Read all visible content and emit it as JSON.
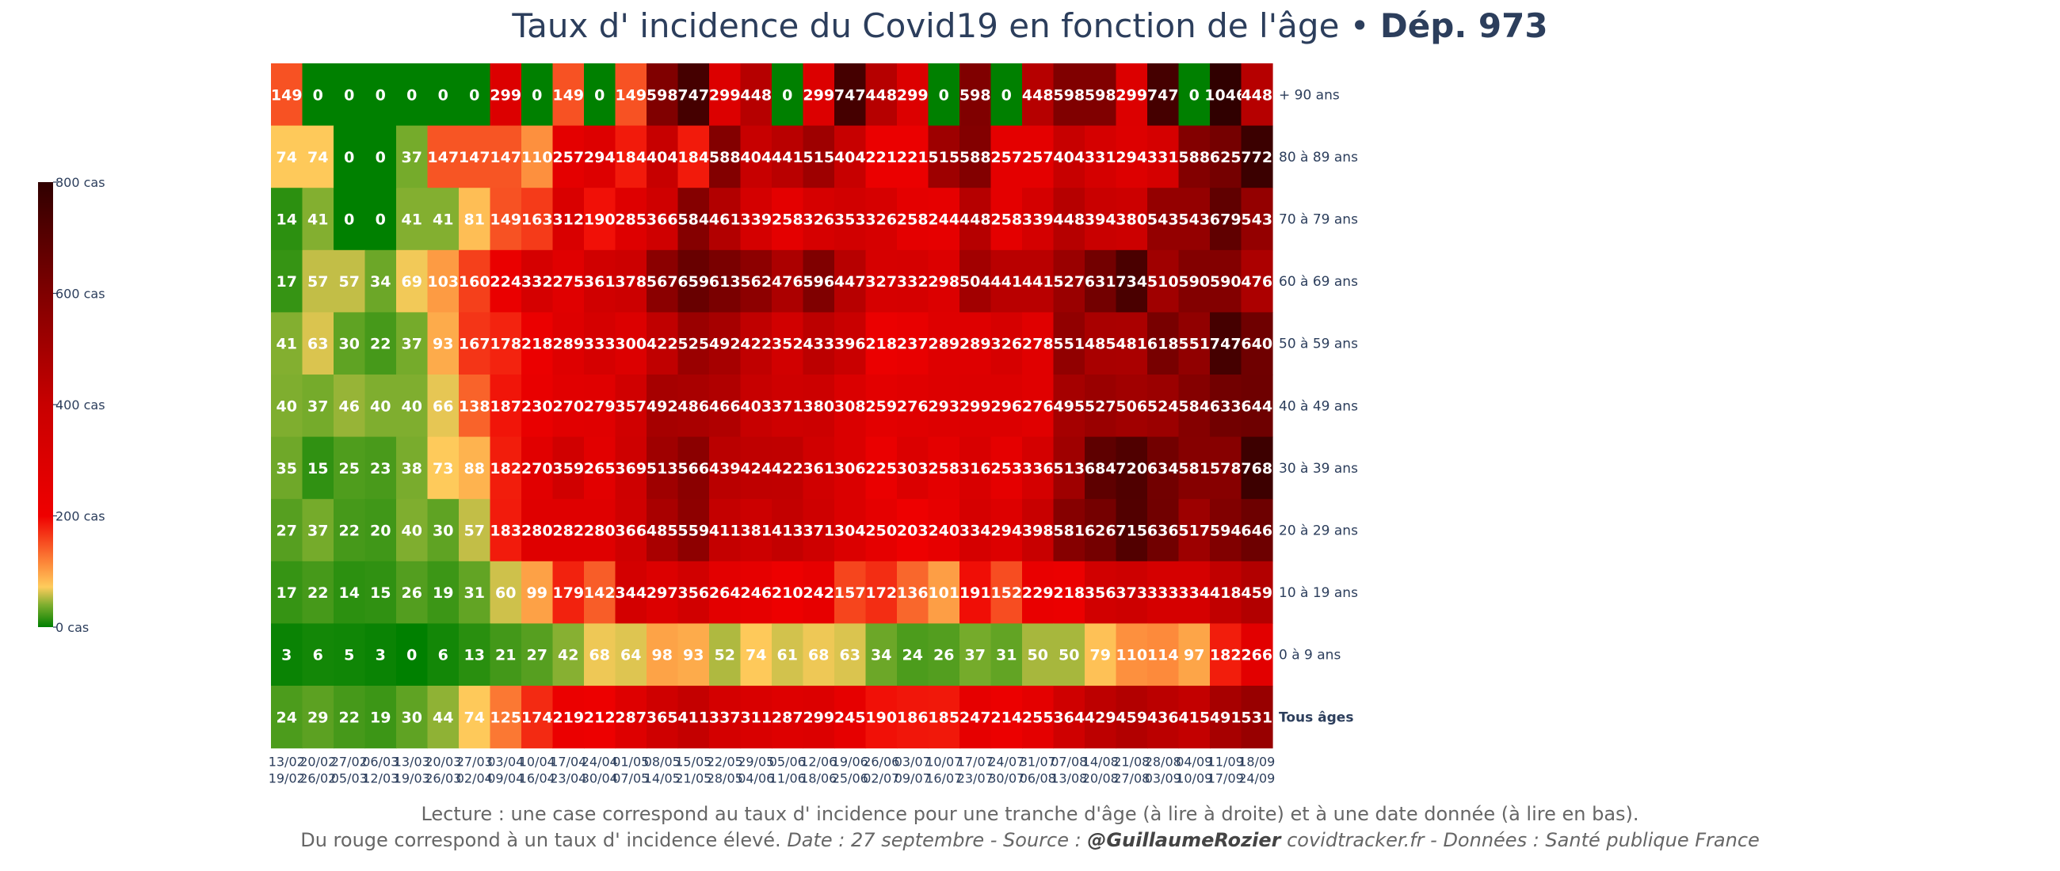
{
  "title": {
    "main": "Taux d' incidence du Covid19 en fonction de l'âge • ",
    "dept": "Dép. 973"
  },
  "footer": {
    "line1": "Lecture : une case correspond au taux d' incidence pour une tranche d'âge (à lire à droite) et à une date donnée (à lire en bas).",
    "line2_prefix": "Du rouge correspond à un taux d' incidence élevé.  ",
    "line2_date": "Date : 27 septembre - Source : ",
    "line2_author": "@GuillaumeRozier",
    "line2_rest": " covidtracker.fr - Données : Santé publique France"
  },
  "colors": {
    "text": "#2c3e5c"
  },
  "chart_data": {
    "type": "heatmap",
    "title": "Taux d' incidence du Covid19 en fonction de l'âge • Dép. 973",
    "colorscale_range": [
      0,
      800
    ],
    "colorbar_ticks": [
      {
        "value": 0,
        "label": "0 cas"
      },
      {
        "value": 200,
        "label": "200 cas"
      },
      {
        "value": 400,
        "label": "400 cas"
      },
      {
        "value": 600,
        "label": "600 cas"
      },
      {
        "value": 800,
        "label": "800 cas"
      }
    ],
    "colorscale": [
      [
        0,
        "#008000"
      ],
      [
        0.05,
        "#7fae2f"
      ],
      [
        0.09,
        "#fecc5c"
      ],
      [
        0.14,
        "#fd8d3c"
      ],
      [
        0.25,
        "#ef0000"
      ],
      [
        0.5,
        "#c80000"
      ],
      [
        0.75,
        "#7f0000"
      ],
      [
        1,
        "#300000"
      ]
    ],
    "columns": [
      [
        "13/02",
        "19/02"
      ],
      [
        "20/02",
        "26/02"
      ],
      [
        "27/02",
        "05/03"
      ],
      [
        "06/03",
        "12/03"
      ],
      [
        "13/03",
        "19/03"
      ],
      [
        "20/03",
        "26/03"
      ],
      [
        "27/03",
        "02/04"
      ],
      [
        "03/04",
        "09/04"
      ],
      [
        "10/04",
        "16/04"
      ],
      [
        "17/04",
        "23/04"
      ],
      [
        "24/04",
        "30/04"
      ],
      [
        "01/05",
        "07/05"
      ],
      [
        "08/05",
        "14/05"
      ],
      [
        "15/05",
        "21/05"
      ],
      [
        "22/05",
        "28/05"
      ],
      [
        "29/05",
        "04/06"
      ],
      [
        "05/06",
        "11/06"
      ],
      [
        "12/06",
        "18/06"
      ],
      [
        "19/06",
        "25/06"
      ],
      [
        "26/06",
        "02/07"
      ],
      [
        "03/07",
        "09/07"
      ],
      [
        "10/07",
        "16/07"
      ],
      [
        "17/07",
        "23/07"
      ],
      [
        "24/07",
        "30/07"
      ],
      [
        "31/07",
        "06/08"
      ],
      [
        "07/08",
        "13/08"
      ],
      [
        "14/08",
        "20/08"
      ],
      [
        "21/08",
        "27/08"
      ],
      [
        "28/08",
        "03/09"
      ],
      [
        "04/09",
        "10/09"
      ],
      [
        "11/09",
        "17/09"
      ],
      [
        "18/09",
        "24/09"
      ]
    ],
    "rows": [
      {
        "label": "+ 90 ans",
        "bold": false,
        "values": [
          149,
          0,
          0,
          0,
          0,
          0,
          0,
          299,
          0,
          149,
          0,
          149,
          598,
          747,
          299,
          448,
          0,
          299,
          747,
          448,
          299,
          0,
          598,
          0,
          448,
          598,
          598,
          299,
          747,
          0,
          1046,
          448
        ]
      },
      {
        "label": "80 à 89 ans",
        "bold": false,
        "values": [
          74,
          74,
          0,
          0,
          37,
          147,
          147,
          147,
          110,
          257,
          294,
          184,
          404,
          184,
          588,
          404,
          441,
          515,
          404,
          221,
          221,
          515,
          588,
          257,
          257,
          404,
          331,
          294,
          331,
          588,
          625,
          772
        ]
      },
      {
        "label": "70 à 79 ans",
        "bold": false,
        "values": [
          14,
          41,
          0,
          0,
          41,
          41,
          81,
          149,
          163,
          312,
          190,
          285,
          366,
          584,
          461,
          339,
          258,
          326,
          353,
          326,
          258,
          244,
          448,
          258,
          339,
          448,
          394,
          380,
          543,
          543,
          679,
          543
        ]
      },
      {
        "label": "60 à 69 ans",
        "bold": false,
        "values": [
          17,
          57,
          57,
          34,
          69,
          103,
          160,
          224,
          332,
          275,
          361,
          378,
          567,
          659,
          613,
          562,
          476,
          596,
          447,
          327,
          332,
          298,
          504,
          441,
          441,
          527,
          631,
          734,
          510,
          590,
          590,
          476
        ]
      },
      {
        "label": "50 à 59 ans",
        "bold": false,
        "values": [
          41,
          63,
          30,
          22,
          37,
          93,
          167,
          178,
          218,
          289,
          333,
          300,
          422,
          525,
          492,
          422,
          352,
          433,
          396,
          218,
          237,
          289,
          289,
          326,
          278,
          551,
          485,
          481,
          618,
          551,
          747,
          640
        ]
      },
      {
        "label": "40 à 49 ans",
        "bold": false,
        "values": [
          40,
          37,
          46,
          40,
          40,
          66,
          138,
          187,
          230,
          270,
          279,
          357,
          492,
          486,
          466,
          403,
          371,
          380,
          308,
          259,
          276,
          293,
          299,
          296,
          276,
          495,
          527,
          506,
          524,
          584,
          633,
          644
        ]
      },
      {
        "label": "30 à 39 ans",
        "bold": false,
        "values": [
          35,
          15,
          25,
          23,
          38,
          73,
          88,
          182,
          270,
          359,
          265,
          369,
          513,
          566,
          439,
          424,
          422,
          361,
          306,
          225,
          303,
          258,
          316,
          253,
          336,
          513,
          684,
          720,
          634,
          581,
          578,
          768
        ]
      },
      {
        "label": "20 à 29 ans",
        "bold": false,
        "values": [
          27,
          37,
          22,
          20,
          40,
          30,
          57,
          183,
          280,
          282,
          280,
          366,
          485,
          559,
          411,
          381,
          413,
          371,
          304,
          250,
          203,
          240,
          334,
          294,
          398,
          581,
          626,
          715,
          636,
          517,
          594,
          646
        ]
      },
      {
        "label": "10 à 19 ans",
        "bold": false,
        "values": [
          17,
          22,
          14,
          15,
          26,
          19,
          31,
          60,
          99,
          179,
          142,
          344,
          297,
          356,
          264,
          246,
          210,
          242,
          157,
          172,
          136,
          101,
          191,
          152,
          229,
          218,
          356,
          373,
          333,
          334,
          418,
          459
        ]
      },
      {
        "label": "0 à 9 ans",
        "bold": false,
        "values": [
          3,
          6,
          5,
          3,
          0,
          6,
          13,
          21,
          27,
          42,
          68,
          64,
          98,
          93,
          52,
          74,
          61,
          68,
          63,
          34,
          24,
          26,
          37,
          31,
          50,
          50,
          79,
          110,
          114,
          97,
          182,
          266
        ]
      },
      {
        "label": "Tous âges",
        "bold": true,
        "values": [
          24,
          29,
          22,
          19,
          30,
          44,
          74,
          125,
          174,
          219,
          212,
          287,
          365,
          411,
          337,
          311,
          287,
          299,
          245,
          190,
          186,
          185,
          247,
          214,
          255,
          364,
          429,
          459,
          436,
          415,
          491,
          531
        ]
      }
    ]
  }
}
